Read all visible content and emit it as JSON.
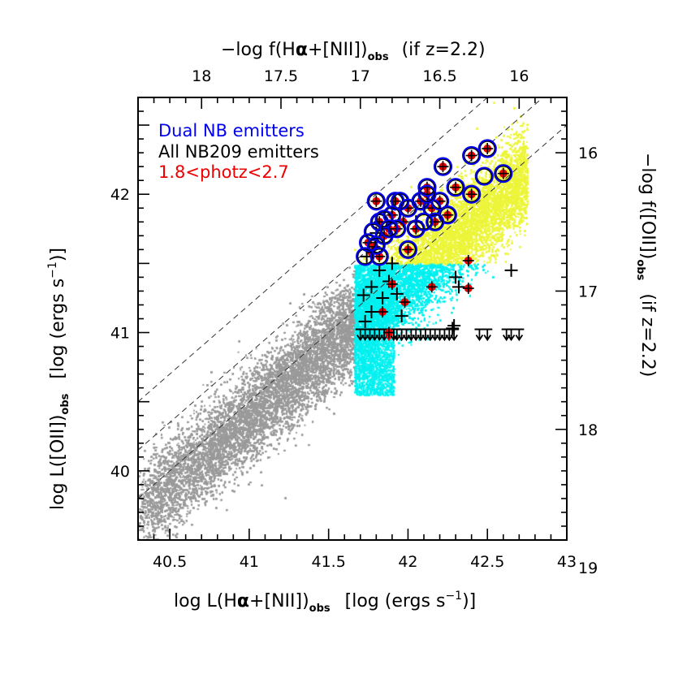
{
  "chart_data": {
    "type": "scatter",
    "xlabel_main": "log L(H",
    "xlabel_alpha": "α",
    "xlabel_rest": "+[NII])",
    "xlabel_sub": "obs",
    "xlabel_unit": "[log (ergs s",
    "xlabel_unit_sup": "−1",
    "xlabel_unit_end": ")]",
    "ylabel_main": "log L([OII])",
    "ylabel_sub": "obs",
    "ylabel_unit": "[log (ergs s",
    "ylabel_unit_sup": "−1",
    "ylabel_unit_end": ")]",
    "top_label_main": "−log f(H",
    "top_label_alpha": "α",
    "top_label_rest": "+[NII])",
    "top_label_sub": "obs",
    "top_label_end": "(if z=2.2)",
    "right_label_main": "−log f([OII])",
    "right_label_sub": "obs",
    "right_label_end": "(if z=2.2)",
    "xlim": [
      40.3,
      43.0
    ],
    "ylim": [
      39.5,
      42.7
    ],
    "x_ticks": [
      "40.5",
      "41",
      "41.5",
      "42",
      "42.5",
      "43"
    ],
    "y_ticks": [
      "40",
      "41",
      "42"
    ],
    "top_ticks": [
      "18",
      "17.5",
      "17",
      "16.5",
      "16"
    ],
    "right_ticks": [
      "16",
      "17",
      "18",
      "19"
    ],
    "legend": [
      {
        "label": "Dual NB emitters",
        "color": "#0000ee"
      },
      {
        "label": "All NB209 emitters",
        "color": "#000000"
      },
      {
        "label": "1.8<photz<2.7",
        "color": "#ee0000"
      }
    ],
    "colors": {
      "gray": "#9a9a9a",
      "cyan": "#00f0f0",
      "yellow": "#ecf53a",
      "blue": "#0000ee",
      "red": "#ee0000"
    },
    "diagonal_offsets": [
      0.2,
      -0.15,
      -0.5
    ],
    "upper_limit_y": 41.0,
    "upper_limits_x": [
      41.7,
      41.73,
      41.76,
      41.79,
      41.82,
      41.85,
      41.88,
      41.91,
      41.93,
      41.96,
      41.99,
      42.02,
      42.05,
      42.08,
      42.11,
      42.14,
      42.17,
      42.2,
      42.23,
      42.26,
      42.29,
      42.45,
      42.5,
      42.62,
      42.65,
      42.7
    ],
    "crosses": [
      {
        "x": 41.74,
        "y": 41.55
      },
      {
        "x": 41.77,
        "y": 41.33
      },
      {
        "x": 41.82,
        "y": 41.45
      },
      {
        "x": 41.88,
        "y": 41.37
      },
      {
        "x": 41.72,
        "y": 41.27
      },
      {
        "x": 41.93,
        "y": 41.28
      },
      {
        "x": 41.84,
        "y": 41.25
      },
      {
        "x": 41.77,
        "y": 41.15
      },
      {
        "x": 41.9,
        "y": 41.5
      },
      {
        "x": 42.3,
        "y": 41.4
      },
      {
        "x": 42.32,
        "y": 41.33
      },
      {
        "x": 42.65,
        "y": 41.45
      },
      {
        "x": 42.29,
        "y": 41.05
      },
      {
        "x": 42.28,
        "y": 41.03
      },
      {
        "x": 41.96,
        "y": 41.12
      },
      {
        "x": 41.73,
        "y": 41.08
      },
      {
        "x": 41.8,
        "y": 41.72
      },
      {
        "x": 42.05,
        "y": 41.8
      }
    ],
    "red_dots": [
      {
        "x": 41.75,
        "y": 41.65
      },
      {
        "x": 41.8,
        "y": 41.95
      },
      {
        "x": 41.82,
        "y": 41.8
      },
      {
        "x": 41.85,
        "y": 41.7
      },
      {
        "x": 41.88,
        "y": 41.75
      },
      {
        "x": 41.92,
        "y": 41.95
      },
      {
        "x": 41.9,
        "y": 41.85
      },
      {
        "x": 41.93,
        "y": 41.75
      },
      {
        "x": 41.97,
        "y": 41.8
      },
      {
        "x": 42.0,
        "y": 41.9
      },
      {
        "x": 42.05,
        "y": 41.75
      },
      {
        "x": 42.08,
        "y": 41.95
      },
      {
        "x": 42.12,
        "y": 42.05
      },
      {
        "x": 42.15,
        "y": 41.9
      },
      {
        "x": 42.2,
        "y": 41.95
      },
      {
        "x": 42.25,
        "y": 41.85
      },
      {
        "x": 42.3,
        "y": 42.05
      },
      {
        "x": 42.22,
        "y": 42.2
      },
      {
        "x": 42.4,
        "y": 42.0
      },
      {
        "x": 42.4,
        "y": 42.28
      },
      {
        "x": 42.5,
        "y": 42.33
      },
      {
        "x": 42.6,
        "y": 42.15
      },
      {
        "x": 42.17,
        "y": 41.8
      },
      {
        "x": 42.0,
        "y": 41.6
      },
      {
        "x": 41.82,
        "y": 41.55
      },
      {
        "x": 41.77,
        "y": 41.58
      },
      {
        "x": 41.9,
        "y": 41.35
      },
      {
        "x": 41.84,
        "y": 41.15
      },
      {
        "x": 41.98,
        "y": 41.22
      },
      {
        "x": 42.15,
        "y": 41.33
      },
      {
        "x": 42.38,
        "y": 41.52
      },
      {
        "x": 42.38,
        "y": 41.32
      },
      {
        "x": 41.88,
        "y": 41.0
      },
      {
        "x": 41.79,
        "y": 41.62
      },
      {
        "x": 42.12,
        "y": 42.0
      }
    ],
    "blue_circles": [
      {
        "x": 41.8,
        "y": 41.95
      },
      {
        "x": 41.82,
        "y": 41.8
      },
      {
        "x": 41.78,
        "y": 41.73
      },
      {
        "x": 41.85,
        "y": 41.7
      },
      {
        "x": 41.92,
        "y": 41.95
      },
      {
        "x": 41.95,
        "y": 41.95
      },
      {
        "x": 41.9,
        "y": 41.85
      },
      {
        "x": 41.93,
        "y": 41.75
      },
      {
        "x": 42.0,
        "y": 41.9
      },
      {
        "x": 42.05,
        "y": 41.75
      },
      {
        "x": 42.08,
        "y": 41.95
      },
      {
        "x": 42.12,
        "y": 42.05
      },
      {
        "x": 42.15,
        "y": 41.9
      },
      {
        "x": 42.2,
        "y": 41.95
      },
      {
        "x": 42.25,
        "y": 41.85
      },
      {
        "x": 42.3,
        "y": 42.05
      },
      {
        "x": 42.22,
        "y": 42.2
      },
      {
        "x": 42.4,
        "y": 42.0
      },
      {
        "x": 42.4,
        "y": 42.28
      },
      {
        "x": 42.5,
        "y": 42.33
      },
      {
        "x": 42.6,
        "y": 42.15
      },
      {
        "x": 42.17,
        "y": 41.8
      },
      {
        "x": 42.0,
        "y": 41.6
      },
      {
        "x": 41.82,
        "y": 41.55
      },
      {
        "x": 41.75,
        "y": 41.65
      },
      {
        "x": 41.8,
        "y": 41.63
      },
      {
        "x": 41.73,
        "y": 41.55
      },
      {
        "x": 42.1,
        "y": 41.8
      },
      {
        "x": 42.48,
        "y": 42.13
      },
      {
        "x": 42.12,
        "y": 42.0
      },
      {
        "x": 41.85,
        "y": 41.82
      },
      {
        "x": 41.88,
        "y": 41.75
      }
    ]
  }
}
